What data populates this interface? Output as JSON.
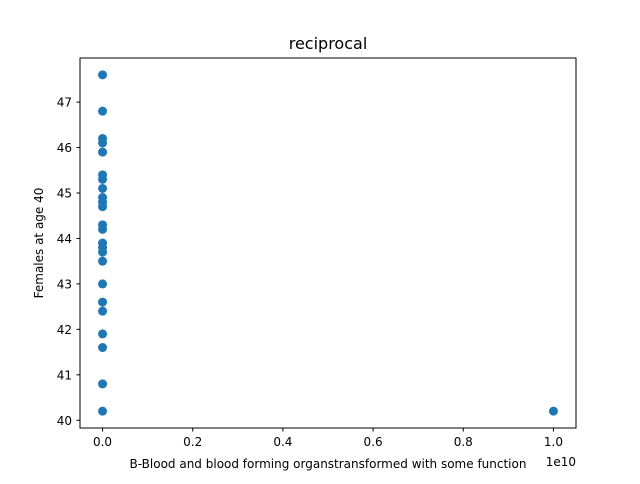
{
  "chart_data": {
    "type": "scatter",
    "title": "reciprocal",
    "xlabel": "B-Blood and blood forming organstransformed with some function",
    "ylabel": "Females at age 40",
    "x_offset_text": "1e10",
    "xlim": [
      -0.05,
      1.05
    ],
    "ylim": [
      39.83,
      47.97
    ],
    "x_ticks": [
      0.0,
      0.2,
      0.4,
      0.6,
      0.8,
      1.0
    ],
    "x_tick_labels": [
      "0.0",
      "0.2",
      "0.4",
      "0.6",
      "0.8",
      "1.0"
    ],
    "y_ticks": [
      40,
      41,
      42,
      43,
      44,
      45,
      46,
      47
    ],
    "y_tick_labels": [
      "40",
      "41",
      "42",
      "43",
      "44",
      "45",
      "46",
      "47"
    ],
    "grid": false,
    "legend": false,
    "marker_color": "#1f77b4",
    "points": [
      {
        "x": 0.0,
        "y": 47.6
      },
      {
        "x": 0.0,
        "y": 46.8
      },
      {
        "x": 0.0,
        "y": 46.2
      },
      {
        "x": 0.0,
        "y": 46.1
      },
      {
        "x": 0.0,
        "y": 45.9
      },
      {
        "x": 0.0,
        "y": 45.4
      },
      {
        "x": 0.0,
        "y": 45.3
      },
      {
        "x": 0.0,
        "y": 45.1
      },
      {
        "x": 0.0,
        "y": 44.9
      },
      {
        "x": 0.0,
        "y": 44.8
      },
      {
        "x": 0.0,
        "y": 44.7
      },
      {
        "x": 0.0,
        "y": 44.3
      },
      {
        "x": 0.0,
        "y": 44.2
      },
      {
        "x": 0.0,
        "y": 43.9
      },
      {
        "x": 0.0,
        "y": 43.8
      },
      {
        "x": 0.0,
        "y": 43.7
      },
      {
        "x": 0.0,
        "y": 43.5
      },
      {
        "x": 0.0,
        "y": 43.0
      },
      {
        "x": 0.0,
        "y": 42.6
      },
      {
        "x": 0.0,
        "y": 42.4
      },
      {
        "x": 0.0,
        "y": 41.9
      },
      {
        "x": 0.0,
        "y": 41.6
      },
      {
        "x": 0.0,
        "y": 40.8
      },
      {
        "x": 0.0,
        "y": 40.2
      },
      {
        "x": 1.0,
        "y": 40.2
      }
    ]
  }
}
